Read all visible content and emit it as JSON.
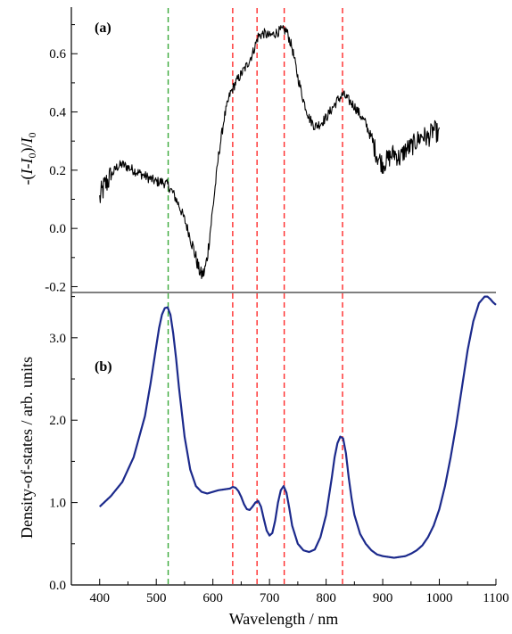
{
  "chart_data": [
    {
      "panel": "(a)",
      "type": "line",
      "ylabel": "-(I-I0)/I0",
      "ylabel_parts": [
        "-(",
        "I",
        "-",
        "I",
        "0",
        ")/",
        "I",
        "0"
      ],
      "xlim": [
        350,
        1100
      ],
      "ylim": [
        -0.22,
        0.76
      ],
      "yticks": [
        -0.2,
        0.0,
        0.2,
        0.4,
        0.6
      ],
      "ytick_labels": [
        "-0.2",
        "0.0",
        "0.2",
        "0.4",
        "0.6"
      ],
      "grid": false,
      "series": [
        {
          "color": "#000000",
          "noisy": true,
          "x": [
            400,
            405,
            410,
            420,
            430,
            440,
            450,
            460,
            470,
            480,
            490,
            500,
            510,
            520,
            530,
            540,
            550,
            560,
            570,
            575,
            580,
            585,
            590,
            600,
            610,
            620,
            630,
            640,
            650,
            660,
            670,
            680,
            690,
            700,
            710,
            720,
            730,
            740,
            750,
            760,
            770,
            780,
            790,
            800,
            810,
            820,
            830,
            840,
            850,
            860,
            870,
            880,
            890,
            900,
            910,
            920,
            930,
            940,
            950,
            960,
            970,
            980,
            990,
            1000
          ],
          "y": [
            0.1,
            0.13,
            0.15,
            0.18,
            0.21,
            0.22,
            0.21,
            0.2,
            0.19,
            0.18,
            0.17,
            0.16,
            0.16,
            0.15,
            0.12,
            0.08,
            0.03,
            -0.03,
            -0.1,
            -0.14,
            -0.16,
            -0.15,
            -0.1,
            0.07,
            0.25,
            0.38,
            0.46,
            0.5,
            0.53,
            0.56,
            0.6,
            0.66,
            0.67,
            0.66,
            0.67,
            0.68,
            0.68,
            0.62,
            0.52,
            0.44,
            0.38,
            0.35,
            0.36,
            0.38,
            0.41,
            0.44,
            0.46,
            0.44,
            0.42,
            0.39,
            0.36,
            0.31,
            0.25,
            0.22,
            0.24,
            0.26,
            0.24,
            0.27,
            0.28,
            0.3,
            0.32,
            0.31,
            0.34,
            0.32
          ]
        }
      ],
      "vlines": [
        {
          "x": 521,
          "color": "#3aa83a"
        },
        {
          "x": 635,
          "color": "#ff2a2a"
        },
        {
          "x": 678,
          "color": "#ff2a2a"
        },
        {
          "x": 726,
          "color": "#ff2a2a"
        },
        {
          "x": 829,
          "color": "#ff2a2a"
        }
      ]
    },
    {
      "panel": "(b)",
      "type": "line",
      "xlabel": "Wavelength / nm",
      "ylabel": "Density-of-states / arb. units",
      "xlim": [
        350,
        1100
      ],
      "ylim": [
        0.0,
        3.55
      ],
      "xticks": [
        400,
        500,
        600,
        700,
        800,
        900,
        1000,
        1100
      ],
      "xtick_labels": [
        "400",
        "500",
        "600",
        "700",
        "800",
        "900",
        "1000",
        "1100"
      ],
      "yticks": [
        0.0,
        1.0,
        2.0,
        3.0
      ],
      "ytick_labels": [
        "0.0",
        "1.0",
        "2.0",
        "3.0"
      ],
      "grid": false,
      "series": [
        {
          "color": "#1c2a8c",
          "x": [
            400,
            420,
            440,
            460,
            480,
            490,
            500,
            505,
            510,
            515,
            520,
            525,
            530,
            535,
            540,
            550,
            560,
            570,
            580,
            590,
            600,
            610,
            620,
            630,
            635,
            640,
            645,
            650,
            655,
            660,
            665,
            670,
            675,
            680,
            685,
            690,
            695,
            700,
            705,
            710,
            715,
            720,
            725,
            730,
            735,
            740,
            750,
            760,
            770,
            780,
            790,
            800,
            810,
            815,
            820,
            825,
            830,
            835,
            840,
            845,
            850,
            860,
            870,
            880,
            890,
            900,
            910,
            920,
            930,
            940,
            950,
            960,
            970,
            980,
            990,
            1000,
            1010,
            1020,
            1030,
            1040,
            1050,
            1060,
            1070,
            1080,
            1085,
            1090,
            1095,
            1100
          ],
          "y": [
            0.95,
            1.08,
            1.25,
            1.55,
            2.05,
            2.45,
            2.9,
            3.12,
            3.28,
            3.36,
            3.37,
            3.28,
            3.05,
            2.75,
            2.4,
            1.8,
            1.4,
            1.2,
            1.13,
            1.11,
            1.13,
            1.15,
            1.16,
            1.17,
            1.19,
            1.18,
            1.14,
            1.07,
            0.98,
            0.92,
            0.91,
            0.95,
            1.0,
            1.02,
            0.95,
            0.8,
            0.66,
            0.6,
            0.63,
            0.78,
            1.0,
            1.15,
            1.2,
            1.12,
            0.93,
            0.72,
            0.5,
            0.42,
            0.4,
            0.43,
            0.58,
            0.85,
            1.3,
            1.55,
            1.72,
            1.8,
            1.78,
            1.6,
            1.3,
            1.05,
            0.85,
            0.62,
            0.5,
            0.42,
            0.37,
            0.35,
            0.34,
            0.33,
            0.34,
            0.35,
            0.38,
            0.42,
            0.48,
            0.58,
            0.72,
            0.92,
            1.2,
            1.55,
            1.95,
            2.4,
            2.85,
            3.2,
            3.42,
            3.5,
            3.5,
            3.47,
            3.43,
            3.4
          ]
        }
      ],
      "vlines": [
        {
          "x": 521,
          "color": "#3aa83a"
        },
        {
          "x": 635,
          "color": "#ff2a2a"
        },
        {
          "x": 678,
          "color": "#ff2a2a"
        },
        {
          "x": 726,
          "color": "#ff2a2a"
        },
        {
          "x": 829,
          "color": "#ff2a2a"
        }
      ]
    }
  ]
}
